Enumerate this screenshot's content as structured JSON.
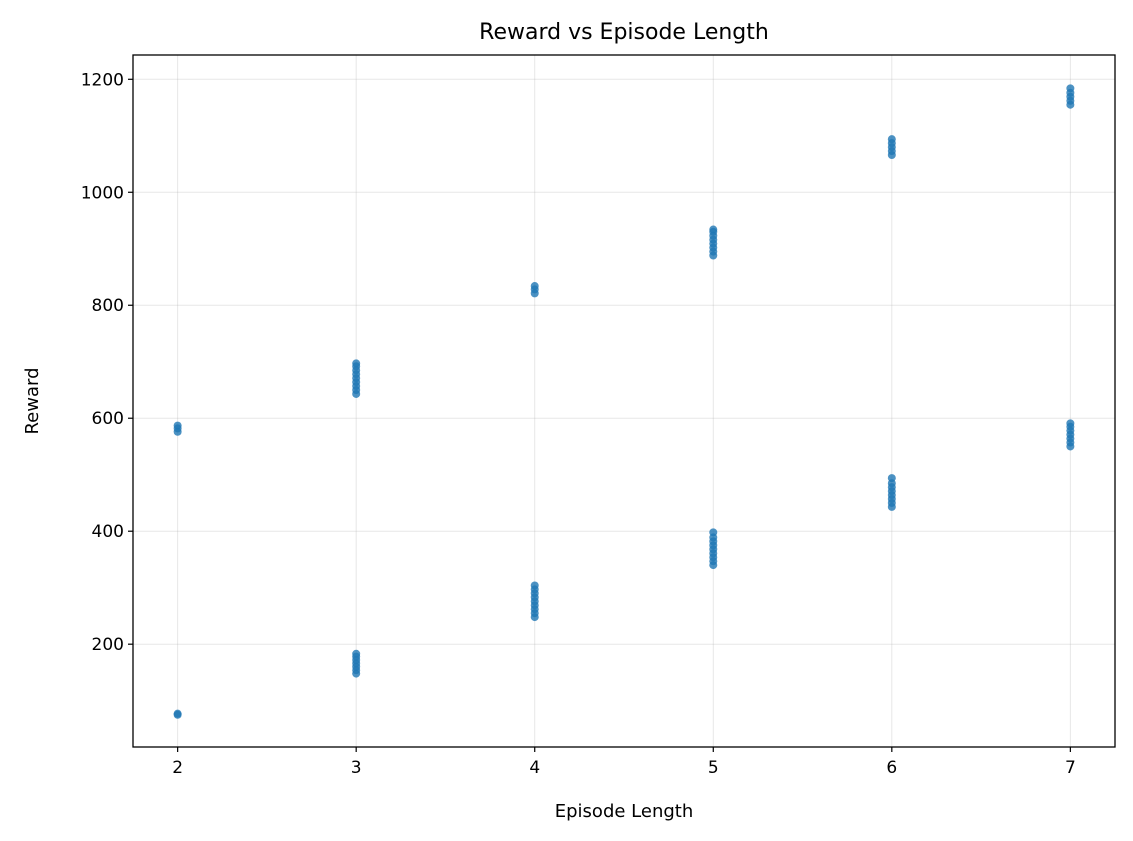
{
  "chart_data": {
    "type": "scatter",
    "title": "Reward vs Episode Length",
    "xlabel": "Episode Length",
    "ylabel": "Reward",
    "xlim": [
      1.75,
      7.25
    ],
    "ylim": [
      18,
      1243
    ],
    "x_ticks": [
      2,
      3,
      4,
      5,
      6,
      7
    ],
    "y_ticks": [
      200,
      400,
      600,
      800,
      1000,
      1200
    ],
    "grid": true,
    "point_color": "#1f77b4",
    "series": [
      {
        "points": [
          {
            "x": 2,
            "y": 75
          },
          {
            "x": 2,
            "y": 77
          },
          {
            "x": 2,
            "y": 576
          },
          {
            "x": 2,
            "y": 582
          },
          {
            "x": 2,
            "y": 587
          },
          {
            "x": 3,
            "y": 148
          },
          {
            "x": 3,
            "y": 154
          },
          {
            "x": 3,
            "y": 160
          },
          {
            "x": 3,
            "y": 166
          },
          {
            "x": 3,
            "y": 172
          },
          {
            "x": 3,
            "y": 178
          },
          {
            "x": 3,
            "y": 183
          },
          {
            "x": 3,
            "y": 643
          },
          {
            "x": 3,
            "y": 650
          },
          {
            "x": 3,
            "y": 657
          },
          {
            "x": 3,
            "y": 664
          },
          {
            "x": 3,
            "y": 671
          },
          {
            "x": 3,
            "y": 678
          },
          {
            "x": 3,
            "y": 685
          },
          {
            "x": 3,
            "y": 692
          },
          {
            "x": 3,
            "y": 697
          },
          {
            "x": 4,
            "y": 248
          },
          {
            "x": 4,
            "y": 255
          },
          {
            "x": 4,
            "y": 262
          },
          {
            "x": 4,
            "y": 269
          },
          {
            "x": 4,
            "y": 276
          },
          {
            "x": 4,
            "y": 283
          },
          {
            "x": 4,
            "y": 290
          },
          {
            "x": 4,
            "y": 297
          },
          {
            "x": 4,
            "y": 304
          },
          {
            "x": 4,
            "y": 821
          },
          {
            "x": 4,
            "y": 828
          },
          {
            "x": 4,
            "y": 834
          },
          {
            "x": 5,
            "y": 340
          },
          {
            "x": 5,
            "y": 347
          },
          {
            "x": 5,
            "y": 354
          },
          {
            "x": 5,
            "y": 361
          },
          {
            "x": 5,
            "y": 368
          },
          {
            "x": 5,
            "y": 375
          },
          {
            "x": 5,
            "y": 382
          },
          {
            "x": 5,
            "y": 389
          },
          {
            "x": 5,
            "y": 398
          },
          {
            "x": 5,
            "y": 888
          },
          {
            "x": 5,
            "y": 895
          },
          {
            "x": 5,
            "y": 902
          },
          {
            "x": 5,
            "y": 909
          },
          {
            "x": 5,
            "y": 916
          },
          {
            "x": 5,
            "y": 923
          },
          {
            "x": 5,
            "y": 930
          },
          {
            "x": 5,
            "y": 934
          },
          {
            "x": 6,
            "y": 443
          },
          {
            "x": 6,
            "y": 450
          },
          {
            "x": 6,
            "y": 457
          },
          {
            "x": 6,
            "y": 464
          },
          {
            "x": 6,
            "y": 471
          },
          {
            "x": 6,
            "y": 478
          },
          {
            "x": 6,
            "y": 485
          },
          {
            "x": 6,
            "y": 494
          },
          {
            "x": 6,
            "y": 1066
          },
          {
            "x": 6,
            "y": 1073
          },
          {
            "x": 6,
            "y": 1080
          },
          {
            "x": 6,
            "y": 1087
          },
          {
            "x": 6,
            "y": 1094
          },
          {
            "x": 7,
            "y": 550
          },
          {
            "x": 7,
            "y": 557
          },
          {
            "x": 7,
            "y": 564
          },
          {
            "x": 7,
            "y": 571
          },
          {
            "x": 7,
            "y": 578
          },
          {
            "x": 7,
            "y": 585
          },
          {
            "x": 7,
            "y": 591
          },
          {
            "x": 7,
            "y": 1155
          },
          {
            "x": 7,
            "y": 1162
          },
          {
            "x": 7,
            "y": 1169
          },
          {
            "x": 7,
            "y": 1176
          },
          {
            "x": 7,
            "y": 1184
          }
        ]
      }
    ]
  }
}
